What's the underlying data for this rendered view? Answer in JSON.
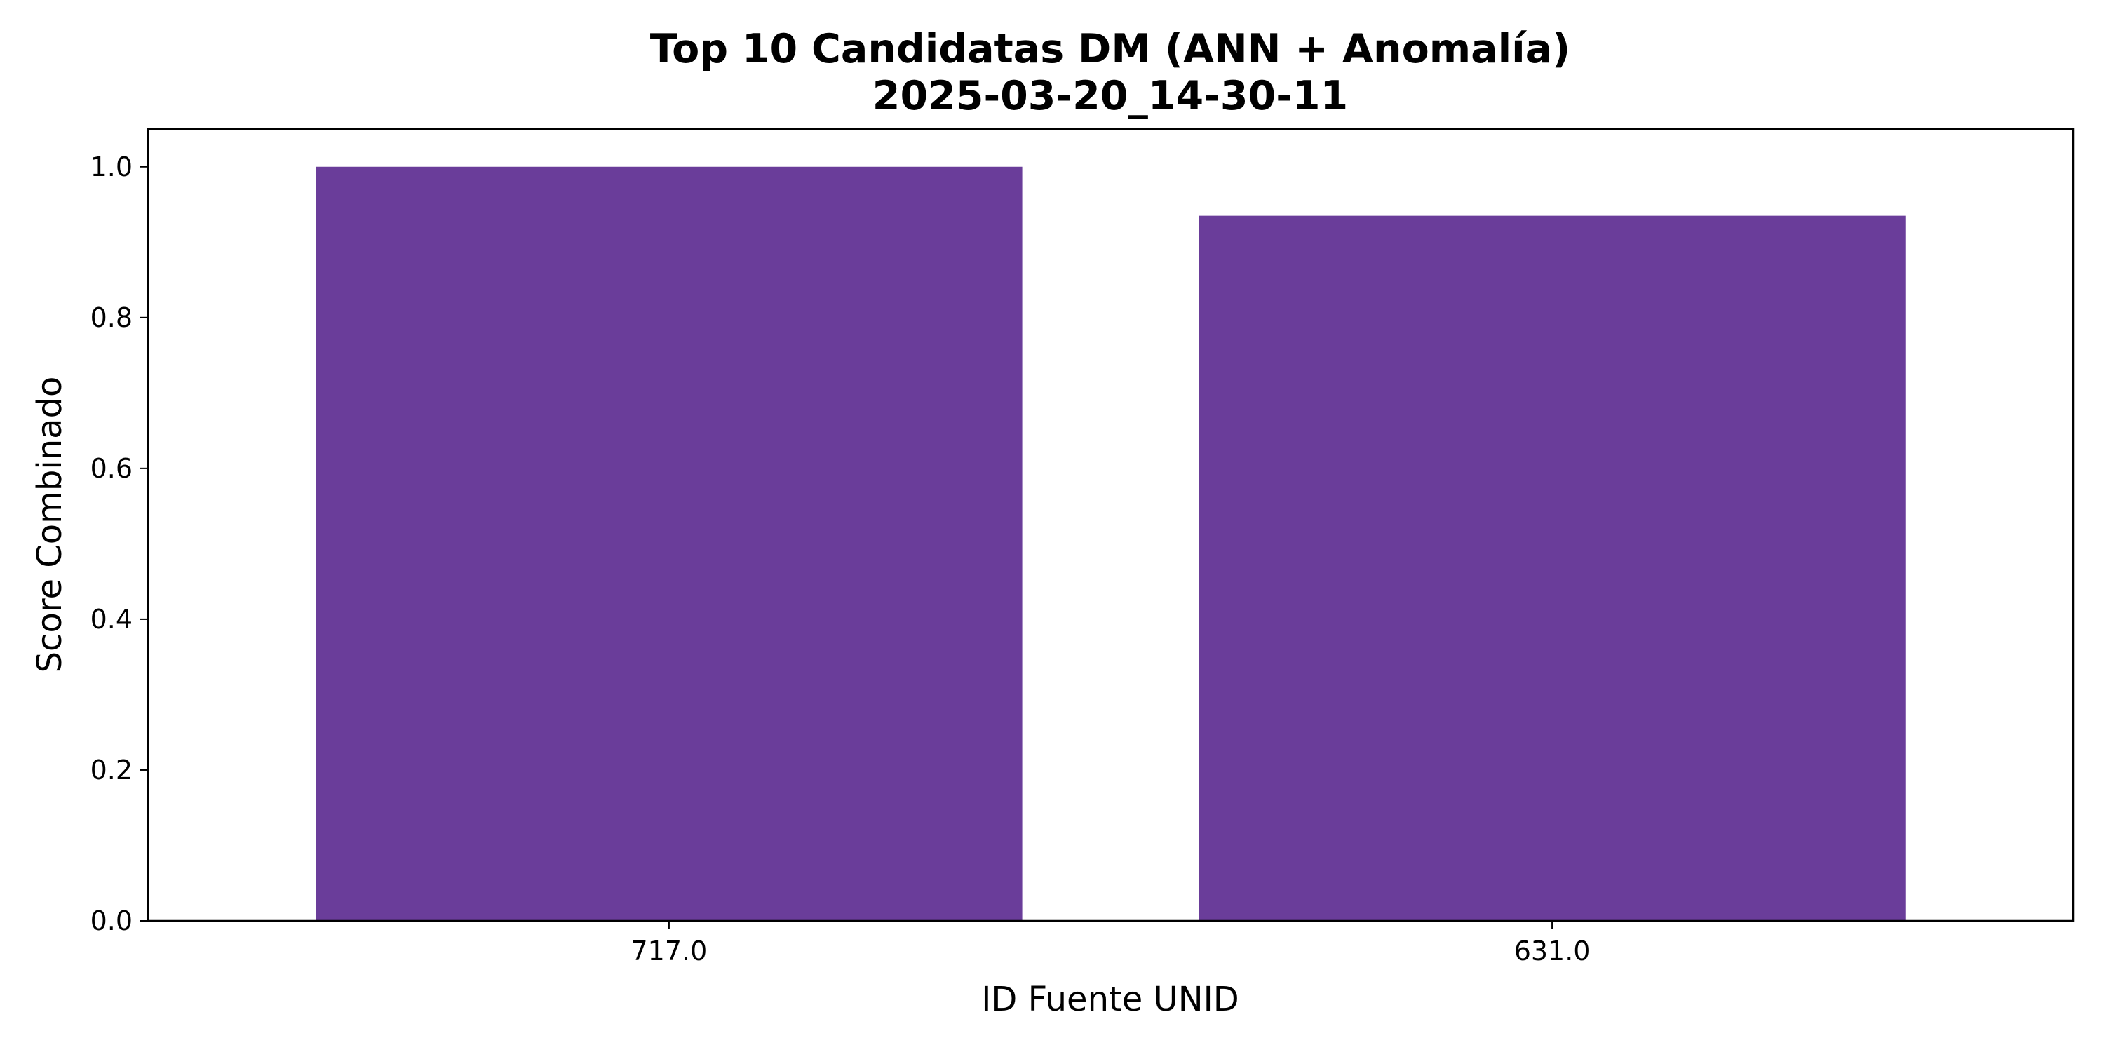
{
  "chart_data": {
    "type": "bar",
    "title_lines": [
      "Top 10 Candidatas DM (ANN + Anomalía)",
      "2025-03-20_14-30-11"
    ],
    "xlabel": "ID Fuente UNID",
    "ylabel": "Score Combinado",
    "categories": [
      "717.0",
      "631.0"
    ],
    "values": [
      1.0,
      0.935
    ],
    "ylim": [
      0.0,
      1.05
    ],
    "yticks": [
      0.0,
      0.2,
      0.4,
      0.6,
      0.8,
      1.0
    ],
    "ytick_labels": [
      "0.0",
      "0.2",
      "0.4",
      "0.6",
      "0.8",
      "1.0"
    ],
    "bar_color": "#6a3d9a",
    "grid": false,
    "legend": "none"
  }
}
